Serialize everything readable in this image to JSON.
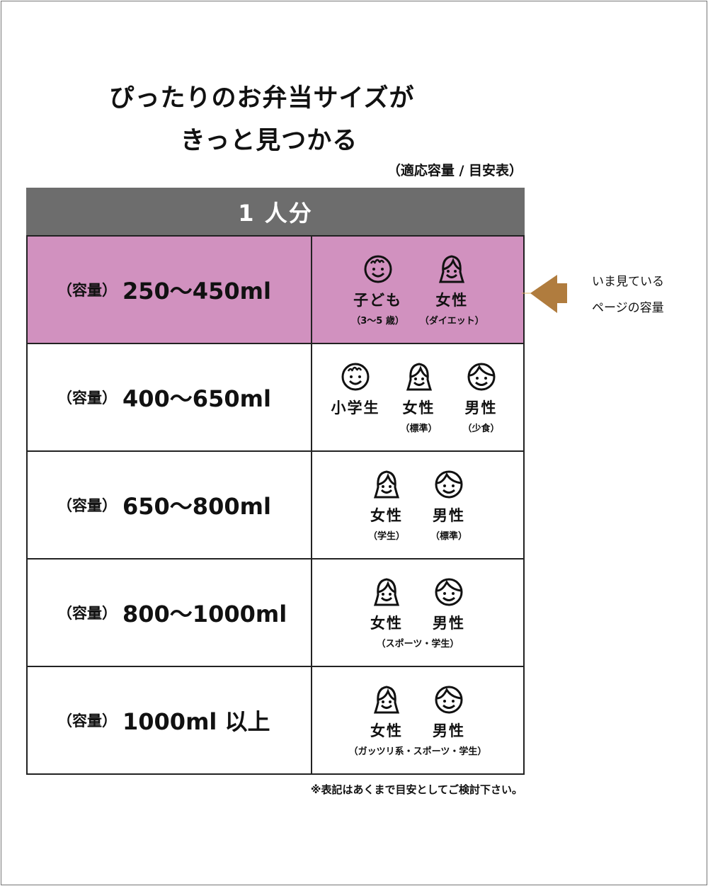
{
  "title": {
    "line1": "ぴったりのお弁当サイズが",
    "line2": "きっと見つかる",
    "subtitle": "（適応容量 / 目安表）"
  },
  "table": {
    "header": "1 人分",
    "rows": [
      {
        "prefix": "（容量）",
        "capacity": "250〜450ml",
        "highlighted": true,
        "people": [
          {
            "icon": "child-face-icon",
            "label": "子ども",
            "note": "（3〜5 歳）"
          },
          {
            "icon": "woman-face-icon",
            "label": "女性",
            "note": "（ダイエット）"
          }
        ]
      },
      {
        "prefix": "（容量）",
        "capacity": "400〜650ml",
        "people": [
          {
            "icon": "child-face-icon",
            "label": "小学生"
          },
          {
            "icon": "woman-face-icon",
            "label": "女性",
            "note": "（標準）"
          },
          {
            "icon": "man-face-icon",
            "label": "男性",
            "note": "（少食）"
          }
        ]
      },
      {
        "prefix": "（容量）",
        "capacity": "650〜800ml",
        "people": [
          {
            "icon": "woman-face-icon",
            "label": "女性",
            "note": "（学生）"
          },
          {
            "icon": "man-face-icon",
            "label": "男性",
            "note": "（標準）"
          }
        ]
      },
      {
        "prefix": "（容量）",
        "capacity": "800〜1000ml",
        "people": [
          {
            "icon": "woman-face-icon",
            "label": "女性"
          },
          {
            "icon": "man-face-icon",
            "label": "男性"
          }
        ],
        "note": "（スポーツ・学生）"
      },
      {
        "prefix": "（容量）",
        "capacity": "1000ml 以上",
        "people": [
          {
            "icon": "woman-face-icon",
            "label": "女性"
          },
          {
            "icon": "man-face-icon",
            "label": "男性"
          }
        ],
        "note": "（ガッツリ系・スポーツ・学生）"
      }
    ]
  },
  "footnote": "※表記はあくまで目安としてご検討下さい。",
  "indicator": {
    "line1": "いま見ている",
    "line2": "ページの容量",
    "arrow_color": "#b07c3e"
  },
  "colors": {
    "header": "#6d6d6d",
    "highlight": "#d191bf"
  }
}
